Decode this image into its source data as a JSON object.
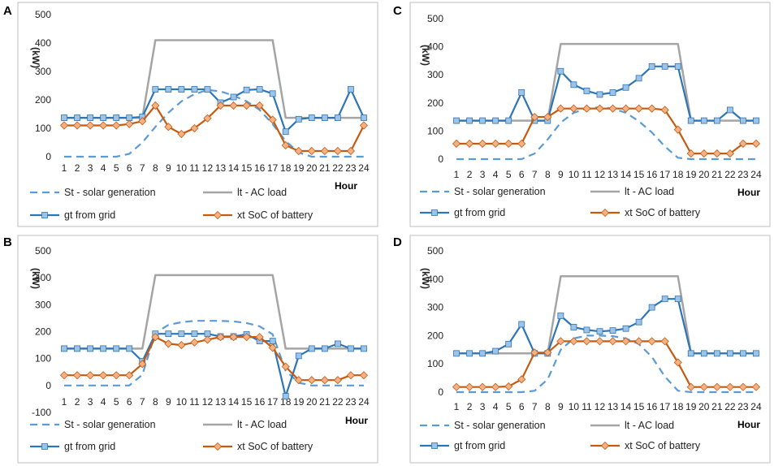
{
  "figure": {
    "series_legend": {
      "solar": "St - solar generation",
      "load": "lt - AC load",
      "grid": "gt from grid",
      "soc": "xt SoC of battery"
    },
    "colors": {
      "solar": "#5B9BD5",
      "load": "#A5A5A5",
      "grid": "#2E75B6",
      "grid_marker": "#9DC3E6",
      "soc": "#C55A11",
      "soc_marker": "#F4B183",
      "frame": "#BFBFBF"
    }
  },
  "chart_data": [
    {
      "panel": "A",
      "type": "line",
      "title": "",
      "xlabel": "Hour",
      "ylabel": "(kW)",
      "categories": [
        "1",
        "2",
        "3",
        "4",
        "5",
        "6",
        "7",
        "8",
        "9",
        "10",
        "11",
        "12",
        "13",
        "14",
        "15",
        "16",
        "17",
        "18",
        "19",
        "20",
        "21",
        "22",
        "23",
        "24"
      ],
      "ylim": [
        0,
        500
      ],
      "yticks": [
        0,
        100,
        200,
        300,
        400,
        500
      ],
      "series": [
        {
          "key": "solar",
          "name": "St - solar generation",
          "values": [
            0,
            0,
            0,
            0,
            0,
            10,
            50,
            105,
            155,
            195,
            220,
            235,
            230,
            215,
            195,
            165,
            115,
            55,
            15,
            0,
            0,
            0,
            0,
            0
          ]
        },
        {
          "key": "load",
          "name": "lt - AC load",
          "values": [
            137,
            137,
            137,
            137,
            137,
            137,
            137,
            410,
            410,
            410,
            410,
            410,
            410,
            410,
            410,
            410,
            410,
            137,
            137,
            137,
            137,
            137,
            137,
            137
          ]
        },
        {
          "key": "grid",
          "name": "gt from grid",
          "values": [
            137,
            137,
            137,
            137,
            137,
            137,
            140,
            237,
            237,
            237,
            237,
            237,
            190,
            210,
            235,
            237,
            222,
            88,
            132,
            137,
            137,
            137,
            237,
            137
          ]
        },
        {
          "key": "soc",
          "name": "xt SoC of battery",
          "values": [
            110,
            110,
            110,
            110,
            110,
            115,
            125,
            180,
            105,
            80,
            100,
            135,
            180,
            180,
            180,
            180,
            130,
            40,
            20,
            20,
            20,
            20,
            20,
            110
          ]
        }
      ]
    },
    {
      "panel": "C",
      "type": "line",
      "title": "",
      "xlabel": "Hour",
      "ylabel": "(kW)",
      "categories": [
        "1",
        "2",
        "3",
        "4",
        "5",
        "6",
        "7",
        "8",
        "9",
        "10",
        "11",
        "12",
        "13",
        "14",
        "15",
        "16",
        "17",
        "18",
        "19",
        "20",
        "21",
        "22",
        "23",
        "24"
      ],
      "ylim": [
        0,
        500
      ],
      "yticks": [
        0,
        100,
        200,
        300,
        400,
        500
      ],
      "series": [
        {
          "key": "solar",
          "name": "St - solar generation",
          "values": [
            0,
            0,
            0,
            0,
            0,
            0,
            20,
            70,
            130,
            165,
            180,
            185,
            180,
            165,
            135,
            95,
            45,
            5,
            0,
            0,
            0,
            0,
            0,
            0
          ]
        },
        {
          "key": "load",
          "name": "lt - AC load",
          "values": [
            137,
            137,
            137,
            137,
            137,
            137,
            137,
            137,
            410,
            410,
            410,
            410,
            410,
            410,
            410,
            410,
            410,
            410,
            137,
            137,
            137,
            137,
            137,
            137
          ]
        },
        {
          "key": "grid",
          "name": "gt from grid",
          "values": [
            137,
            137,
            137,
            137,
            137,
            237,
            137,
            137,
            313,
            265,
            243,
            230,
            237,
            255,
            288,
            330,
            330,
            330,
            137,
            137,
            137,
            175,
            137,
            137
          ]
        },
        {
          "key": "soc",
          "name": "xt SoC of battery",
          "values": [
            55,
            55,
            55,
            55,
            55,
            55,
            150,
            150,
            180,
            180,
            180,
            180,
            180,
            180,
            180,
            180,
            175,
            105,
            20,
            20,
            20,
            20,
            55,
            55
          ]
        }
      ]
    },
    {
      "panel": "B",
      "type": "line",
      "title": "",
      "xlabel": "Hour",
      "ylabel": "(kW)",
      "categories": [
        "1",
        "2",
        "3",
        "4",
        "5",
        "6",
        "7",
        "8",
        "9",
        "10",
        "11",
        "12",
        "13",
        "14",
        "15",
        "16",
        "17",
        "18",
        "19",
        "20",
        "21",
        "22",
        "23",
        "24"
      ],
      "ylim": [
        -100,
        500
      ],
      "yticks": [
        -100,
        0,
        100,
        200,
        300,
        400,
        500
      ],
      "series": [
        {
          "key": "solar",
          "name": "St - solar generation",
          "values": [
            0,
            0,
            0,
            0,
            0,
            0,
            40,
            195,
            225,
            235,
            240,
            240,
            240,
            238,
            232,
            220,
            190,
            55,
            10,
            0,
            0,
            0,
            0,
            0
          ]
        },
        {
          "key": "load",
          "name": "lt - AC load",
          "values": [
            137,
            137,
            137,
            137,
            137,
            137,
            137,
            410,
            410,
            410,
            410,
            410,
            410,
            410,
            410,
            410,
            410,
            137,
            137,
            137,
            137,
            137,
            137,
            137
          ]
        },
        {
          "key": "grid",
          "name": "gt from grid",
          "values": [
            137,
            137,
            137,
            137,
            137,
            137,
            90,
            192,
            192,
            192,
            192,
            192,
            182,
            182,
            190,
            165,
            165,
            -40,
            110,
            137,
            137,
            155,
            137,
            137
          ]
        },
        {
          "key": "soc",
          "name": "xt SoC of battery",
          "values": [
            38,
            38,
            38,
            38,
            38,
            38,
            80,
            180,
            155,
            150,
            160,
            170,
            180,
            180,
            180,
            180,
            140,
            70,
            20,
            20,
            20,
            20,
            38,
            38
          ]
        }
      ]
    },
    {
      "panel": "D",
      "type": "line",
      "title": "",
      "xlabel": "Hour",
      "ylabel": "(kW)",
      "categories": [
        "1",
        "2",
        "3",
        "4",
        "5",
        "6",
        "7",
        "8",
        "9",
        "10",
        "11",
        "12",
        "13",
        "14",
        "15",
        "16",
        "17",
        "18",
        "19",
        "20",
        "21",
        "22",
        "23",
        "24"
      ],
      "ylim": [
        0,
        500
      ],
      "yticks": [
        0,
        100,
        200,
        300,
        400,
        500
      ],
      "series": [
        {
          "key": "solar",
          "name": "St - solar generation",
          "values": [
            0,
            0,
            0,
            0,
            0,
            0,
            5,
            45,
            150,
            190,
            200,
            200,
            198,
            190,
            170,
            125,
            55,
            5,
            0,
            0,
            0,
            0,
            0,
            0
          ]
        },
        {
          "key": "load",
          "name": "lt - AC load",
          "values": [
            137,
            137,
            137,
            137,
            137,
            137,
            137,
            137,
            410,
            410,
            410,
            410,
            410,
            410,
            410,
            410,
            410,
            410,
            137,
            137,
            137,
            137,
            137,
            137
          ]
        },
        {
          "key": "grid",
          "name": "gt from grid",
          "values": [
            137,
            137,
            137,
            145,
            170,
            240,
            137,
            137,
            270,
            230,
            220,
            215,
            218,
            225,
            248,
            300,
            330,
            330,
            137,
            137,
            137,
            137,
            137,
            137
          ]
        },
        {
          "key": "soc",
          "name": "xt SoC of battery",
          "values": [
            18,
            18,
            18,
            18,
            20,
            45,
            140,
            140,
            180,
            180,
            180,
            180,
            180,
            180,
            180,
            180,
            180,
            105,
            18,
            18,
            18,
            18,
            18,
            18
          ]
        }
      ]
    }
  ]
}
